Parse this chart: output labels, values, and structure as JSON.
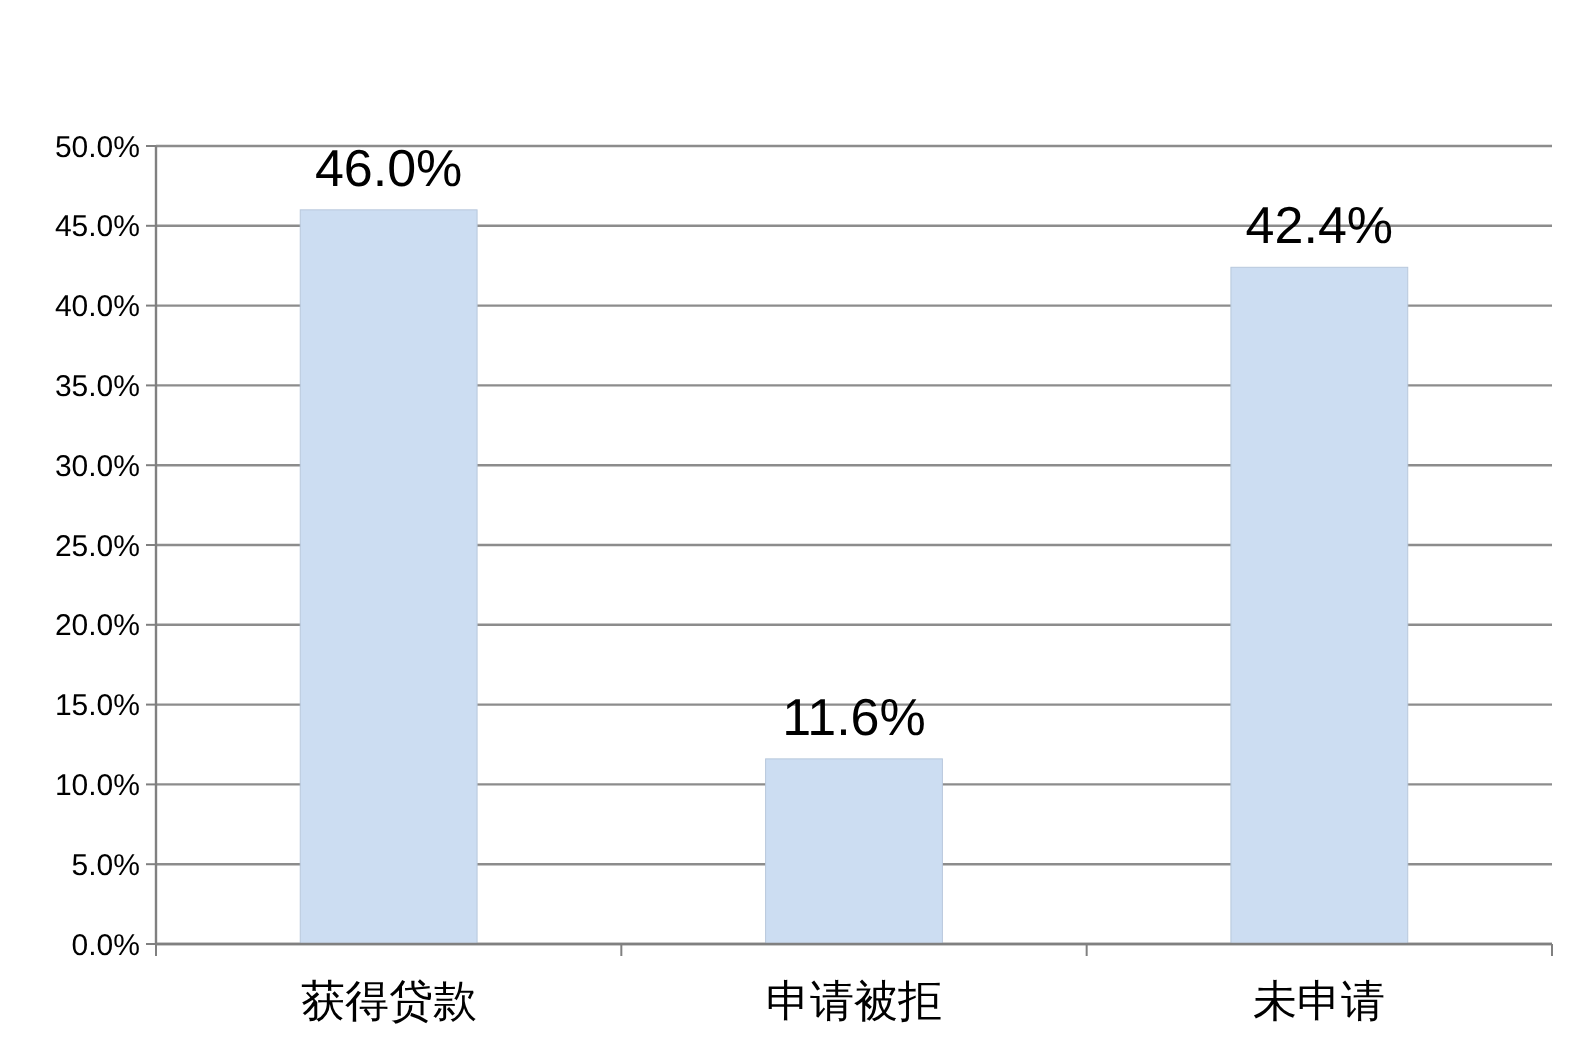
{
  "chart_data": {
    "type": "bar",
    "categories": [
      "获得贷款",
      "申请被拒",
      "未申请"
    ],
    "values": [
      46.0,
      11.6,
      42.4
    ],
    "color": "#ccddf2",
    "value_labels": [
      "46.0%",
      "11.6%",
      "42.4%"
    ],
    "ylim": [
      0,
      50
    ],
    "yticks": [
      {
        "value": 0,
        "label": "0.0%"
      },
      {
        "value": 5,
        "label": "5.0%"
      },
      {
        "value": 10,
        "label": "10.0%"
      },
      {
        "value": 15,
        "label": "15.0%"
      },
      {
        "value": 20,
        "label": "20.0%"
      },
      {
        "value": 25,
        "label": "25.0%"
      },
      {
        "value": 30,
        "label": "30.0%"
      },
      {
        "value": 35,
        "label": "35.0%"
      },
      {
        "value": 40,
        "label": "40.0%"
      },
      {
        "value": 45,
        "label": "45.0%"
      },
      {
        "value": 50,
        "label": "50.0%"
      }
    ],
    "grid": "y"
  }
}
